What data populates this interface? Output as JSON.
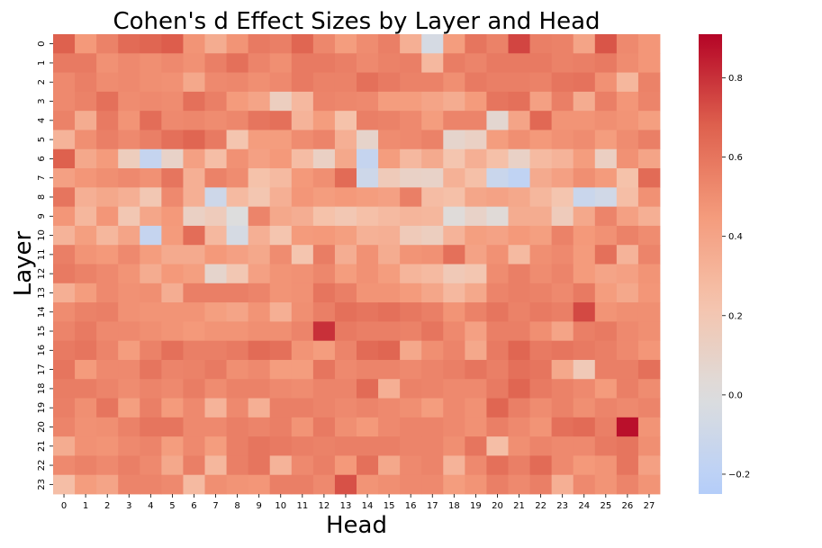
{
  "chart_data": {
    "type": "heatmap",
    "title": "Cohen's d Effect Sizes by Layer and Head",
    "xlabel": "Head",
    "ylabel": "Layer",
    "x_categories": [
      "0",
      "1",
      "2",
      "3",
      "4",
      "5",
      "6",
      "7",
      "8",
      "9",
      "10",
      "11",
      "12",
      "13",
      "14",
      "15",
      "16",
      "17",
      "18",
      "19",
      "20",
      "21",
      "22",
      "23",
      "24",
      "25",
      "26",
      "27"
    ],
    "y_categories": [
      "0",
      "1",
      "2",
      "3",
      "4",
      "5",
      "6",
      "7",
      "8",
      "9",
      "10",
      "11",
      "12",
      "13",
      "14",
      "15",
      "16",
      "17",
      "18",
      "19",
      "20",
      "21",
      "22",
      "23"
    ],
    "colormap": "coolwarm",
    "vmin": -0.25,
    "vmax": 0.91,
    "colorbar_ticks": [
      -0.2,
      0.0,
      0.2,
      0.4,
      0.6,
      0.8
    ],
    "colorbar_tick_labels": [
      "−0.2",
      "0.0",
      "0.2",
      "0.4",
      "0.6",
      "0.8"
    ],
    "values": [
      [
        0.68,
        0.46,
        0.55,
        0.64,
        0.66,
        0.69,
        0.48,
        0.36,
        0.48,
        0.58,
        0.56,
        0.66,
        0.53,
        0.44,
        0.51,
        0.56,
        0.34,
        -0.05,
        0.44,
        0.6,
        0.55,
        0.75,
        0.56,
        0.55,
        0.4,
        0.71,
        0.52,
        0.47
      ],
      [
        0.58,
        0.58,
        0.49,
        0.52,
        0.5,
        0.52,
        0.49,
        0.56,
        0.62,
        0.54,
        0.5,
        0.58,
        0.58,
        0.56,
        0.52,
        0.55,
        0.56,
        0.29,
        0.57,
        0.54,
        0.58,
        0.58,
        0.58,
        0.55,
        0.56,
        0.58,
        0.51,
        0.47
      ],
      [
        0.52,
        0.56,
        0.51,
        0.52,
        0.5,
        0.49,
        0.38,
        0.52,
        0.53,
        0.5,
        0.52,
        0.58,
        0.55,
        0.55,
        0.62,
        0.58,
        0.55,
        0.55,
        0.5,
        0.58,
        0.56,
        0.56,
        0.55,
        0.6,
        0.61,
        0.49,
        0.3,
        0.55
      ],
      [
        0.52,
        0.55,
        0.62,
        0.51,
        0.52,
        0.51,
        0.62,
        0.56,
        0.45,
        0.4,
        0.14,
        0.29,
        0.54,
        0.53,
        0.52,
        0.44,
        0.44,
        0.4,
        0.36,
        0.45,
        0.6,
        0.62,
        0.42,
        0.56,
        0.36,
        0.56,
        0.47,
        0.54
      ],
      [
        0.55,
        0.36,
        0.58,
        0.48,
        0.63,
        0.52,
        0.53,
        0.51,
        0.53,
        0.6,
        0.62,
        0.32,
        0.44,
        0.24,
        0.56,
        0.55,
        0.52,
        0.44,
        0.54,
        0.54,
        0.06,
        0.4,
        0.65,
        0.48,
        0.48,
        0.5,
        0.48,
        0.43
      ],
      [
        0.32,
        0.5,
        0.56,
        0.52,
        0.56,
        0.62,
        0.66,
        0.58,
        0.22,
        0.44,
        0.44,
        0.51,
        0.54,
        0.34,
        0.09,
        0.51,
        0.52,
        0.55,
        0.08,
        0.12,
        0.44,
        0.5,
        0.46,
        0.49,
        0.51,
        0.44,
        0.51,
        0.56
      ],
      [
        0.68,
        0.38,
        0.45,
        0.15,
        -0.15,
        0.1,
        0.42,
        0.26,
        0.49,
        0.42,
        0.46,
        0.27,
        0.12,
        0.38,
        -0.15,
        0.44,
        0.29,
        0.37,
        0.22,
        0.34,
        0.25,
        0.11,
        0.28,
        0.32,
        0.44,
        0.13,
        0.49,
        0.4
      ],
      [
        0.42,
        0.47,
        0.5,
        0.52,
        0.49,
        0.6,
        0.34,
        0.55,
        0.51,
        0.24,
        0.28,
        0.46,
        0.5,
        0.64,
        -0.1,
        0.17,
        0.11,
        0.1,
        0.33,
        0.25,
        -0.12,
        -0.18,
        0.37,
        0.42,
        0.5,
        0.45,
        0.24,
        0.64
      ],
      [
        0.6,
        0.34,
        0.38,
        0.34,
        0.2,
        0.52,
        0.34,
        -0.1,
        0.28,
        0.21,
        0.34,
        0.47,
        0.44,
        0.46,
        0.44,
        0.42,
        0.56,
        0.27,
        0.25,
        0.39,
        0.41,
        0.38,
        0.3,
        0.22,
        -0.12,
        -0.08,
        0.26,
        0.49
      ],
      [
        0.47,
        0.3,
        0.47,
        0.2,
        0.39,
        0.46,
        0.12,
        0.16,
        0.0,
        0.54,
        0.38,
        0.35,
        0.24,
        0.2,
        0.25,
        0.28,
        0.31,
        0.3,
        0.02,
        0.1,
        0.03,
        0.36,
        0.36,
        0.16,
        0.38,
        0.54,
        0.42,
        0.34
      ],
      [
        0.32,
        0.43,
        0.3,
        0.4,
        -0.15,
        0.45,
        0.63,
        0.29,
        -0.05,
        0.34,
        0.22,
        0.45,
        0.46,
        0.43,
        0.33,
        0.34,
        0.17,
        0.14,
        0.32,
        0.43,
        0.41,
        0.46,
        0.43,
        0.55,
        0.46,
        0.49,
        0.55,
        0.51
      ],
      [
        0.56,
        0.48,
        0.46,
        0.52,
        0.44,
        0.37,
        0.37,
        0.46,
        0.42,
        0.38,
        0.51,
        0.22,
        0.57,
        0.35,
        0.49,
        0.36,
        0.48,
        0.49,
        0.62,
        0.41,
        0.49,
        0.28,
        0.5,
        0.52,
        0.45,
        0.62,
        0.32,
        0.54
      ],
      [
        0.58,
        0.55,
        0.52,
        0.48,
        0.36,
        0.46,
        0.43,
        0.08,
        0.2,
        0.42,
        0.48,
        0.49,
        0.53,
        0.44,
        0.49,
        0.44,
        0.31,
        0.28,
        0.18,
        0.21,
        0.51,
        0.56,
        0.51,
        0.54,
        0.45,
        0.4,
        0.42,
        0.48
      ],
      [
        0.34,
        0.44,
        0.52,
        0.49,
        0.5,
        0.35,
        0.56,
        0.56,
        0.56,
        0.54,
        0.48,
        0.49,
        0.6,
        0.56,
        0.48,
        0.48,
        0.45,
        0.39,
        0.29,
        0.38,
        0.54,
        0.56,
        0.55,
        0.52,
        0.58,
        0.44,
        0.38,
        0.47
      ],
      [
        0.51,
        0.55,
        0.56,
        0.49,
        0.48,
        0.48,
        0.48,
        0.43,
        0.4,
        0.48,
        0.34,
        0.5,
        0.56,
        0.62,
        0.6,
        0.62,
        0.59,
        0.56,
        0.48,
        0.55,
        0.6,
        0.55,
        0.58,
        0.56,
        0.74,
        0.48,
        0.5,
        0.5
      ],
      [
        0.54,
        0.58,
        0.52,
        0.52,
        0.5,
        0.48,
        0.46,
        0.48,
        0.48,
        0.5,
        0.5,
        0.54,
        0.8,
        0.58,
        0.56,
        0.56,
        0.55,
        0.6,
        0.52,
        0.42,
        0.56,
        0.56,
        0.5,
        0.4,
        0.56,
        0.58,
        0.52,
        0.5
      ],
      [
        0.58,
        0.6,
        0.54,
        0.44,
        0.55,
        0.62,
        0.56,
        0.56,
        0.58,
        0.64,
        0.62,
        0.48,
        0.44,
        0.54,
        0.64,
        0.66,
        0.38,
        0.5,
        0.54,
        0.38,
        0.58,
        0.66,
        0.58,
        0.6,
        0.58,
        0.56,
        0.52,
        0.47
      ],
      [
        0.6,
        0.45,
        0.52,
        0.52,
        0.6,
        0.54,
        0.55,
        0.58,
        0.5,
        0.52,
        0.44,
        0.44,
        0.6,
        0.52,
        0.54,
        0.54,
        0.52,
        0.54,
        0.56,
        0.6,
        0.56,
        0.62,
        0.6,
        0.38,
        0.18,
        0.56,
        0.56,
        0.62
      ],
      [
        0.57,
        0.57,
        0.54,
        0.51,
        0.54,
        0.52,
        0.57,
        0.51,
        0.55,
        0.55,
        0.52,
        0.51,
        0.54,
        0.54,
        0.64,
        0.34,
        0.55,
        0.54,
        0.52,
        0.52,
        0.58,
        0.66,
        0.58,
        0.55,
        0.52,
        0.45,
        0.56,
        0.51
      ],
      [
        0.56,
        0.5,
        0.6,
        0.43,
        0.56,
        0.45,
        0.52,
        0.32,
        0.52,
        0.34,
        0.56,
        0.56,
        0.54,
        0.52,
        0.54,
        0.52,
        0.5,
        0.44,
        0.52,
        0.49,
        0.66,
        0.56,
        0.51,
        0.55,
        0.5,
        0.54,
        0.52,
        0.54
      ],
      [
        0.54,
        0.49,
        0.5,
        0.55,
        0.6,
        0.6,
        0.52,
        0.52,
        0.56,
        0.54,
        0.56,
        0.48,
        0.58,
        0.5,
        0.46,
        0.52,
        0.54,
        0.54,
        0.52,
        0.49,
        0.56,
        0.52,
        0.48,
        0.62,
        0.64,
        0.56,
        0.88,
        0.48
      ],
      [
        0.36,
        0.49,
        0.48,
        0.52,
        0.54,
        0.44,
        0.52,
        0.44,
        0.56,
        0.6,
        0.58,
        0.56,
        0.55,
        0.56,
        0.56,
        0.56,
        0.54,
        0.54,
        0.5,
        0.6,
        0.26,
        0.5,
        0.54,
        0.52,
        0.52,
        0.58,
        0.6,
        0.5
      ],
      [
        0.52,
        0.55,
        0.52,
        0.56,
        0.52,
        0.38,
        0.56,
        0.3,
        0.56,
        0.6,
        0.32,
        0.52,
        0.56,
        0.46,
        0.62,
        0.38,
        0.52,
        0.54,
        0.32,
        0.52,
        0.62,
        0.56,
        0.64,
        0.52,
        0.46,
        0.48,
        0.6,
        0.42
      ],
      [
        0.26,
        0.44,
        0.4,
        0.54,
        0.54,
        0.52,
        0.28,
        0.5,
        0.48,
        0.47,
        0.56,
        0.56,
        0.52,
        0.72,
        0.48,
        0.5,
        0.52,
        0.52,
        0.44,
        0.48,
        0.56,
        0.52,
        0.56,
        0.34,
        0.52,
        0.48,
        0.54,
        0.48
      ]
    ]
  }
}
